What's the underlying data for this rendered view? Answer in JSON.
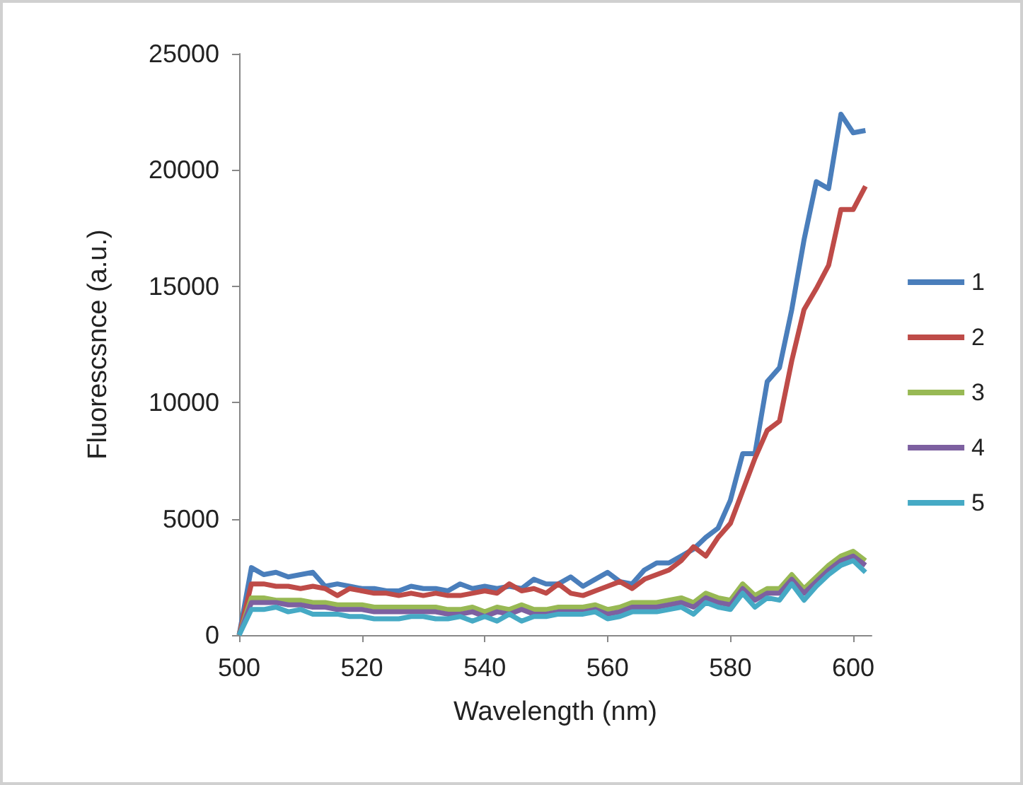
{
  "chart_data": {
    "type": "line",
    "xlabel": "Wavelength (nm)",
    "ylabel": "Fluorescsnce (a.u.)",
    "x": [
      500,
      502,
      504,
      506,
      508,
      510,
      512,
      514,
      516,
      518,
      520,
      522,
      524,
      526,
      528,
      530,
      532,
      534,
      536,
      538,
      540,
      542,
      544,
      546,
      548,
      550,
      552,
      554,
      556,
      558,
      560,
      562,
      564,
      566,
      568,
      570,
      572,
      574,
      576,
      578,
      580,
      582,
      584,
      586,
      588,
      590,
      592,
      594,
      596,
      598,
      600,
      602
    ],
    "xlim": [
      500,
      603
    ],
    "xticks": [
      500,
      520,
      540,
      560,
      580,
      600
    ],
    "ylim": [
      0,
      25000
    ],
    "yticks": [
      0,
      5000,
      10000,
      15000,
      20000,
      25000
    ],
    "grid": false,
    "legend": "right",
    "marker": "none",
    "series": [
      {
        "name": "1",
        "color": "#4a7ebb",
        "values": [
          0,
          2900,
          2600,
          2700,
          2500,
          2600,
          2700,
          2100,
          2200,
          2100,
          2000,
          2000,
          1900,
          1900,
          2100,
          2000,
          2000,
          1900,
          2200,
          2000,
          2100,
          2000,
          2100,
          2000,
          2400,
          2200,
          2200,
          2500,
          2100,
          2400,
          2700,
          2300,
          2200,
          2800,
          3100,
          3100,
          3400,
          3700,
          4200,
          4600,
          5800,
          7800,
          7800,
          10900,
          11500,
          14000,
          17000,
          19500,
          19200,
          22400,
          21600,
          21700
        ]
      },
      {
        "name": "2",
        "color": "#be4b48",
        "values": [
          0,
          2200,
          2200,
          2100,
          2100,
          2000,
          2100,
          2000,
          1700,
          2000,
          1900,
          1800,
          1800,
          1700,
          1800,
          1700,
          1800,
          1700,
          1700,
          1800,
          1900,
          1800,
          2200,
          1900,
          2000,
          1800,
          2200,
          1800,
          1700,
          1900,
          2100,
          2300,
          2000,
          2400,
          2600,
          2800,
          3200,
          3800,
          3400,
          4200,
          4800,
          6200,
          7600,
          8800,
          9200,
          11800,
          14000,
          14900,
          15900,
          18300,
          18300,
          19300
        ]
      },
      {
        "name": "3",
        "color": "#98b954",
        "values": [
          0,
          1600,
          1600,
          1500,
          1500,
          1500,
          1400,
          1400,
          1300,
          1300,
          1300,
          1200,
          1200,
          1200,
          1200,
          1200,
          1200,
          1100,
          1100,
          1200,
          1000,
          1200,
          1100,
          1300,
          1100,
          1100,
          1200,
          1200,
          1200,
          1300,
          1100,
          1200,
          1400,
          1400,
          1400,
          1500,
          1600,
          1400,
          1800,
          1600,
          1500,
          2200,
          1700,
          2000,
          2000,
          2600,
          2000,
          2500,
          3000,
          3400,
          3600,
          3200
        ]
      },
      {
        "name": "4",
        "color": "#7d60a0",
        "values": [
          0,
          1400,
          1400,
          1400,
          1300,
          1300,
          1200,
          1200,
          1100,
          1100,
          1100,
          1000,
          1000,
          1000,
          1000,
          1000,
          1000,
          900,
          900,
          1000,
          800,
          1000,
          900,
          1100,
          900,
          900,
          1000,
          1000,
          1000,
          1100,
          900,
          1000,
          1200,
          1200,
          1200,
          1300,
          1400,
          1200,
          1600,
          1400,
          1300,
          2000,
          1500,
          1800,
          1800,
          2400,
          1800,
          2300,
          2800,
          3200,
          3400,
          3000
        ]
      },
      {
        "name": "5",
        "color": "#46aac5",
        "values": [
          0,
          1100,
          1100,
          1200,
          1000,
          1100,
          900,
          900,
          900,
          800,
          800,
          700,
          700,
          700,
          800,
          800,
          700,
          700,
          800,
          600,
          800,
          600,
          900,
          600,
          800,
          800,
          900,
          900,
          900,
          1000,
          700,
          800,
          1000,
          1000,
          1000,
          1100,
          1200,
          900,
          1400,
          1200,
          1100,
          1800,
          1200,
          1600,
          1500,
          2200,
          1500,
          2100,
          2600,
          3000,
          3200,
          2700
        ]
      }
    ]
  }
}
